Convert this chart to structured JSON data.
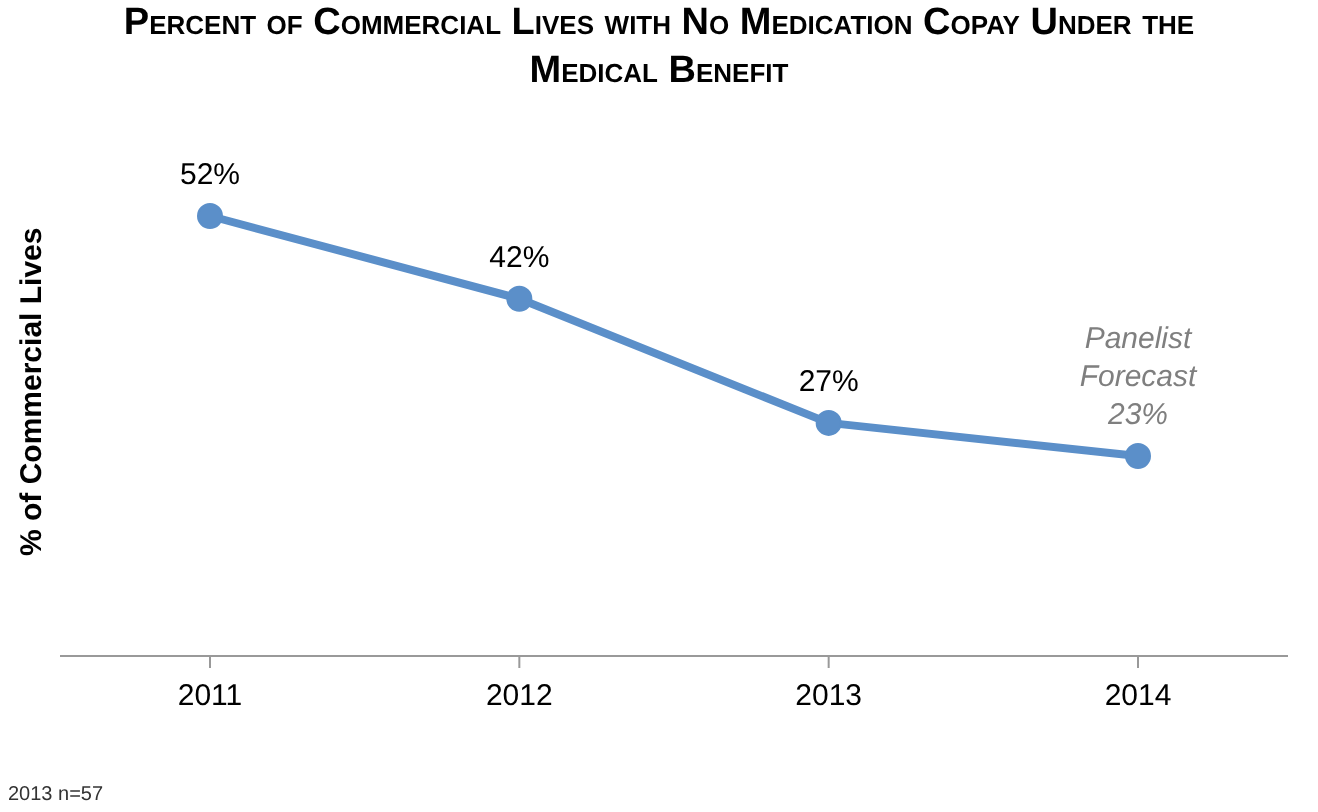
{
  "chart_data": {
    "type": "line",
    "title": "Percent of Commercial Lives with No Medication Copay Under the Medical Benefit",
    "ylabel": "% of Commercial Lives",
    "categories": [
      "2011",
      "2012",
      "2013",
      "2014"
    ],
    "series": [
      {
        "color": "#5b8fc9",
        "values": [
          52,
          42,
          27,
          23
        ],
        "value_labels": [
          "52%",
          "42%",
          "27%",
          "Panelist Forecast 23%"
        ]
      }
    ],
    "tick_labels": "x",
    "marker": "circle",
    "line_style": "solid",
    "annotations": [
      "2013 n=57"
    ]
  }
}
